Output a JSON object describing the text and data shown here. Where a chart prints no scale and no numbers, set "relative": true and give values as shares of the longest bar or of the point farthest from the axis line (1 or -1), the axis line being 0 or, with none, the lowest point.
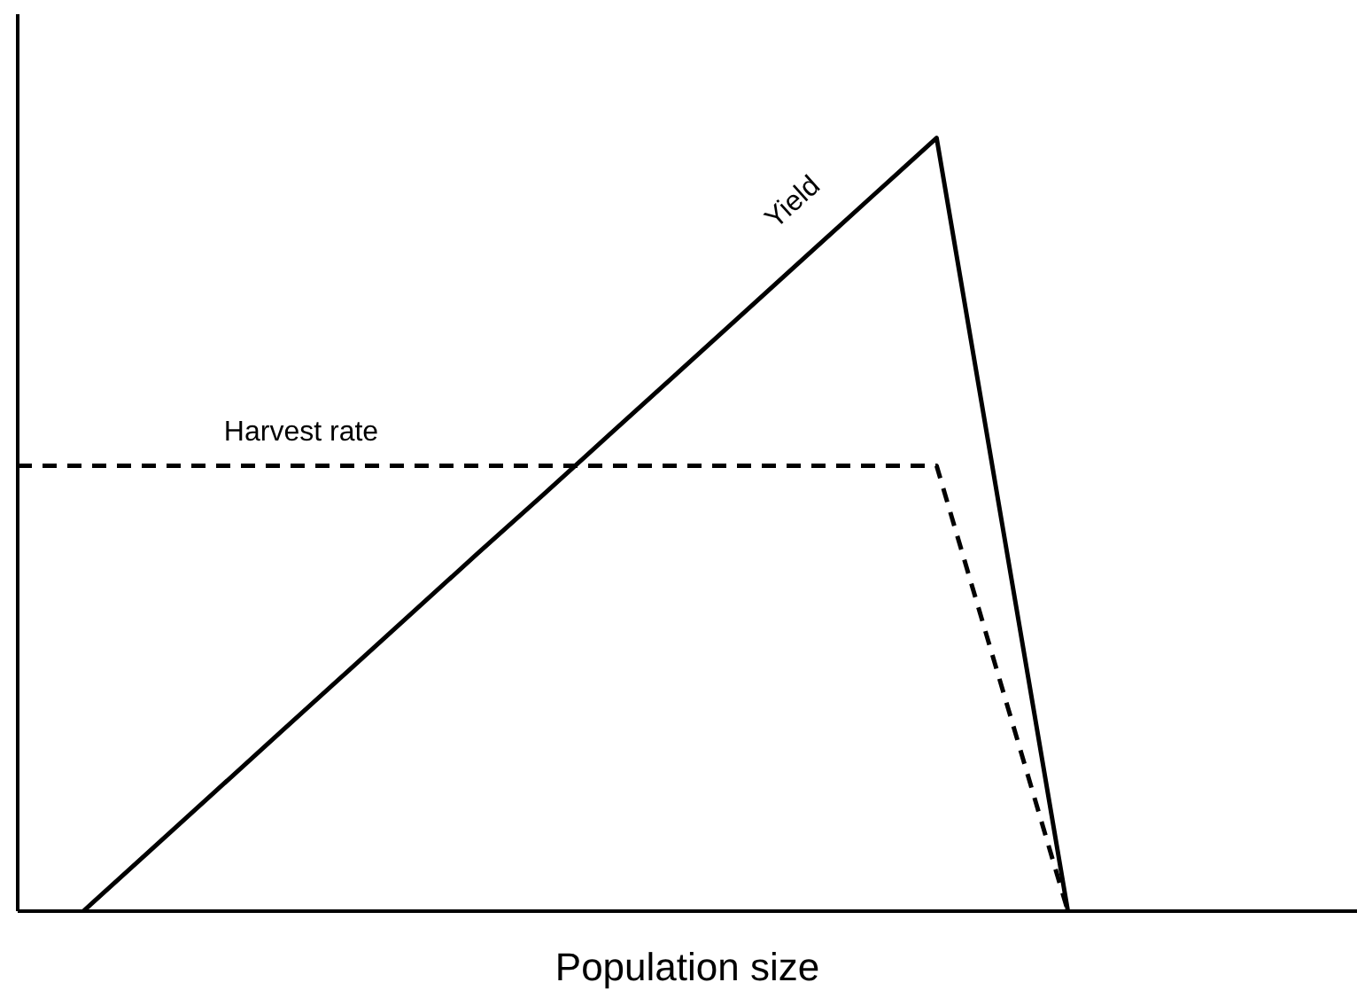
{
  "chart_data": {
    "type": "line",
    "relative": true,
    "xlabel": "Population size",
    "marker": "none",
    "categories": [
      null,
      null,
      null,
      null,
      null,
      null,
      null,
      null,
      null,
      null,
      null,
      null,
      null,
      null,
      null,
      null,
      null,
      null,
      null,
      null,
      null
    ],
    "series": [
      {
        "name": "Yield",
        "color": "#000000",
        "line_style": "solid",
        "values": [
          null,
          0,
          0.077,
          0.154,
          0.231,
          0.308,
          0.385,
          0.462,
          0.538,
          0.615,
          0.692,
          0.769,
          0.846,
          0.923,
          1,
          0.5,
          0,
          null,
          null,
          null,
          null
        ]
      },
      {
        "name": "Harvest rate",
        "color": "#000000",
        "line_style": "dashed",
        "values": [
          0.576,
          0.576,
          0.576,
          0.576,
          0.576,
          0.576,
          0.576,
          0.576,
          0.576,
          0.576,
          0.576,
          0.576,
          0.576,
          0.576,
          0.576,
          0.288,
          0,
          null,
          null,
          null,
          null
        ]
      }
    ]
  }
}
